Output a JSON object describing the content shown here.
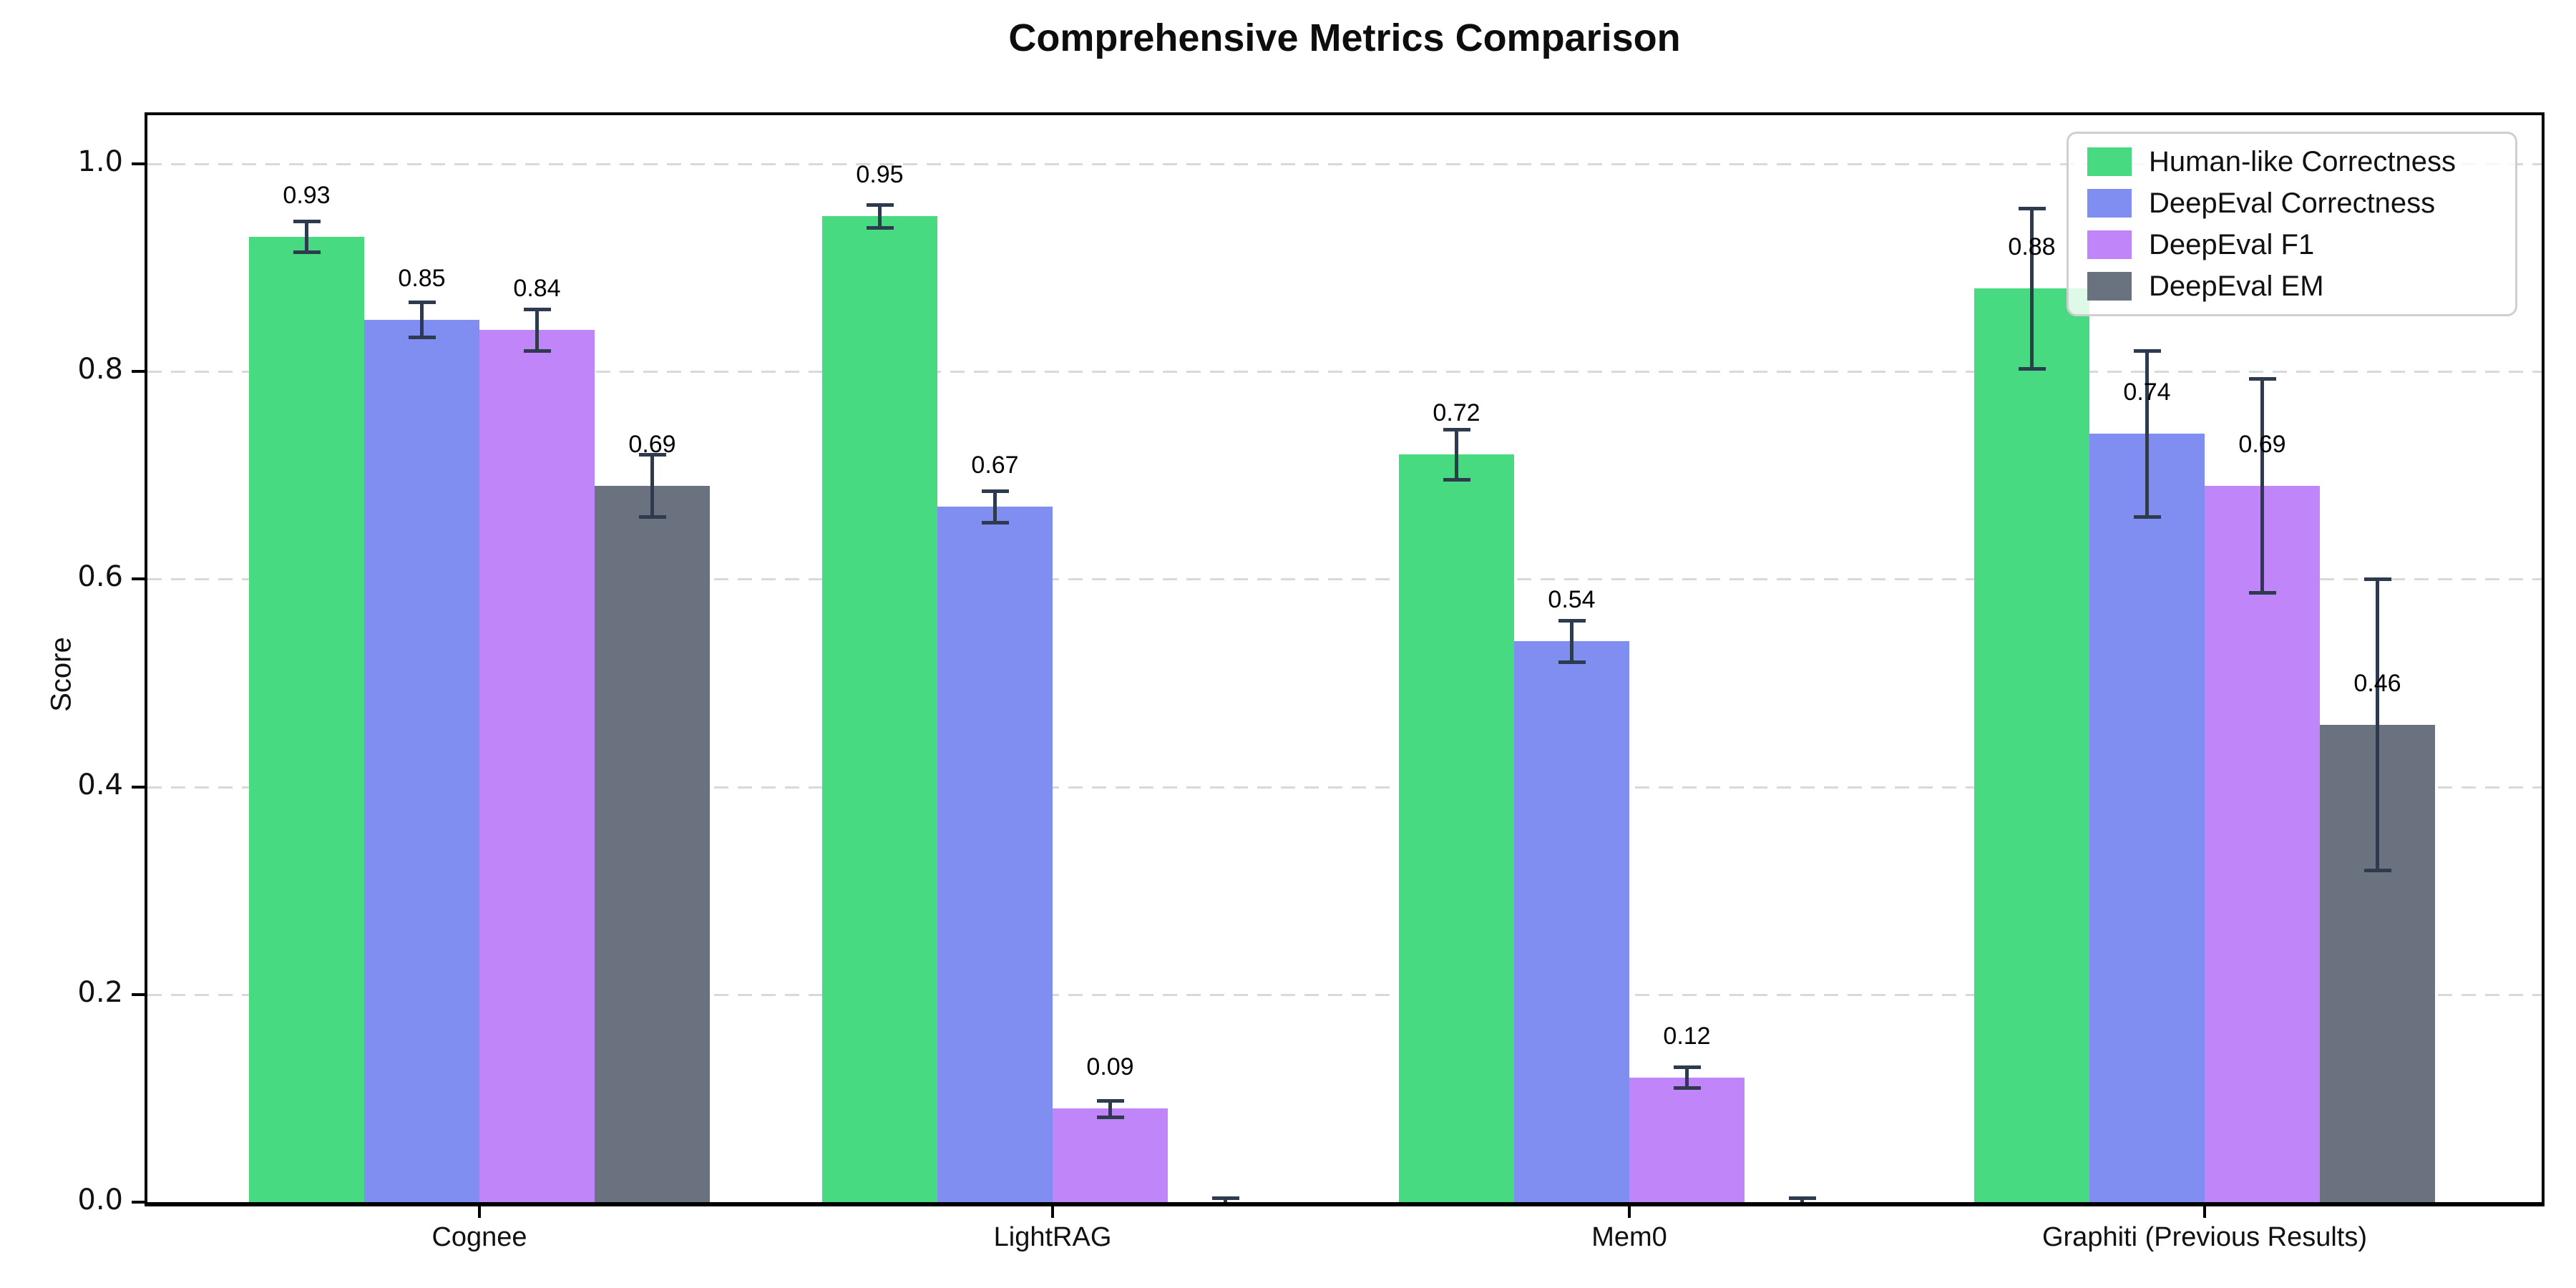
{
  "title": "Comprehensive Metrics Comparison",
  "chart_data": {
    "type": "bar",
    "title": "Comprehensive Metrics Comparison",
    "xlabel": "",
    "ylabel": "Score",
    "ylim": [
      0,
      1.05
    ],
    "grid": "horizontal dashed",
    "grid_color": "#d9d9d9",
    "legend_position": "upper right",
    "error_bar_color": "#2e3b4e",
    "categories": [
      "Cognee",
      "LightRAG",
      "Mem0",
      "Graphiti (Previous Results)"
    ],
    "yticks": [
      0.0,
      0.2,
      0.4,
      0.6,
      0.8,
      1.0
    ],
    "ytick_labels": [
      "0.0",
      "0.2",
      "0.4",
      "0.6",
      "0.8",
      "1.0"
    ],
    "series": [
      {
        "name": "Human-like Correctness",
        "color": "#47da81",
        "values": [
          0.93,
          0.95,
          0.72,
          0.88
        ],
        "errors": [
          0.015,
          0.011,
          0.024,
          0.077
        ],
        "labels": [
          "0.93",
          "0.95",
          "0.72",
          "0.88"
        ]
      },
      {
        "name": "DeepEval Correctness",
        "color": "#808df1",
        "values": [
          0.85,
          0.67,
          0.54,
          0.74
        ],
        "errors": [
          0.017,
          0.015,
          0.02,
          0.08
        ],
        "labels": [
          "0.85",
          "0.67",
          "0.54",
          "0.74"
        ]
      },
      {
        "name": "DeepEval F1",
        "color": "#bf85f9",
        "values": [
          0.84,
          0.09,
          0.12,
          0.69
        ],
        "errors": [
          0.02,
          0.008,
          0.01,
          0.103
        ],
        "labels": [
          "0.84",
          "0.09",
          "0.12",
          "0.69"
        ]
      },
      {
        "name": "DeepEval EM",
        "color": "#6a7280",
        "values": [
          0.69,
          0.0,
          0.0,
          0.46
        ],
        "errors": [
          0.03,
          0.004,
          0.004,
          0.14
        ],
        "labels": [
          "0.69",
          null,
          null,
          "0.46"
        ]
      }
    ]
  }
}
